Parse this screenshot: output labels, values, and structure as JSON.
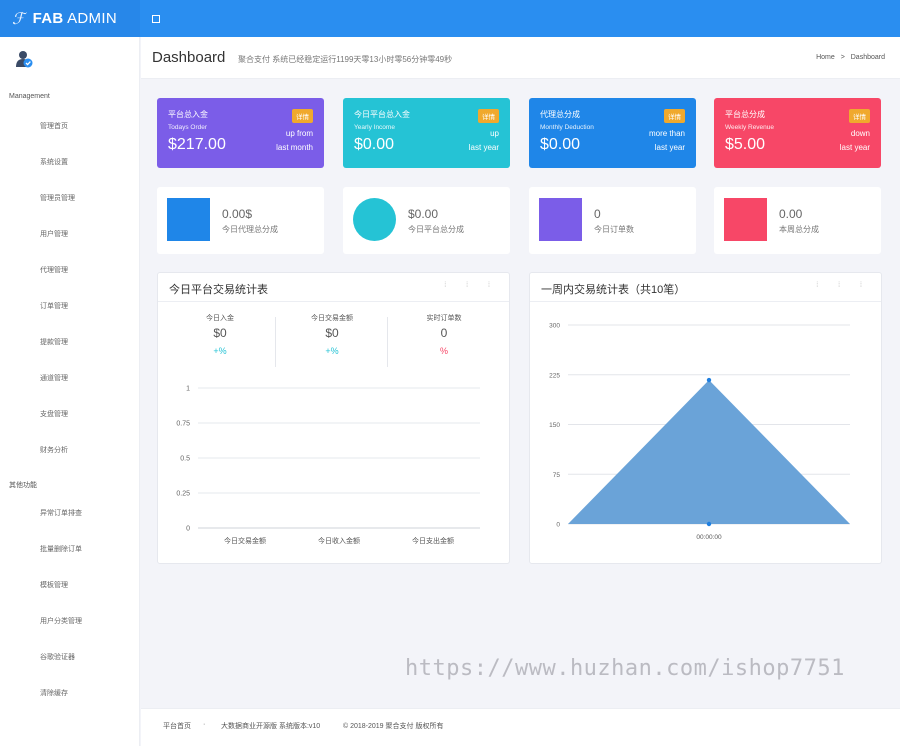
{
  "topbar": {
    "brand_icon": "ℱ",
    "brand_bold": "FAB",
    "brand_rest": " ADMIN"
  },
  "sidebar": {
    "section1": "Management",
    "items1": [
      "管理首页",
      "系统设置",
      "管理员管理",
      "用户管理",
      "代理管理",
      "订单管理",
      "提款管理",
      "通道管理",
      "支盘管理",
      "财务分析"
    ],
    "section2": "其他功能",
    "items2": [
      "异常订单排查",
      "批量删除订单",
      "模板管理",
      "用户分类管理",
      "谷歌验证器",
      "清除缓存"
    ]
  },
  "header": {
    "title": "Dashboard",
    "subtitle": "聚合支付 系统已经稳定运行1199天零13小时零56分钟零49秒",
    "breadcrumb": {
      "home": "Home",
      "sep": ">",
      "current": "Dashboard"
    }
  },
  "stats": [
    {
      "title": "平台总入金",
      "subtitle": "Todays Order",
      "value": "$217.00",
      "badge": "详情",
      "right1": "up from",
      "right2": "last month",
      "color": "#7b5de8"
    },
    {
      "title": "今日平台总入金",
      "subtitle": "Yearly Income",
      "value": "$0.00",
      "badge": "详情",
      "right1": "up",
      "right2": "last year",
      "color": "#25c3d5"
    },
    {
      "title": "代理总分成",
      "subtitle": "Monthly Deduction",
      "value": "$0.00",
      "badge": "详情",
      "right1": "more than",
      "right2": "last year",
      "color": "#1f86e8"
    },
    {
      "title": "平台总分成",
      "subtitle": "Weekly Revenue",
      "value": "$5.00",
      "badge": "详情",
      "right1": "down",
      "right2": "last year",
      "color": "#f74767"
    }
  ],
  "minis": [
    {
      "value": "0.00$",
      "label": "今日代理总分成",
      "color": "#1f86e8",
      "shape": "square"
    },
    {
      "value": "$0.00",
      "label": "今日平台总分成",
      "color": "#25c3d5",
      "shape": "circle"
    },
    {
      "value": "0",
      "label": "今日订单数",
      "color": "#7b5de8",
      "shape": "square"
    },
    {
      "value": "0.00",
      "label": "本周总分成",
      "color": "#f74767",
      "shape": "square"
    }
  ],
  "panel_left": {
    "title": "今日平台交易统计表",
    "tools": "⁞ ⁞ ⁞",
    "summary": [
      {
        "label": "今日入金",
        "value": "$0",
        "pct": "+%",
        "color": "#25c3d5"
      },
      {
        "label": "今日交易金额",
        "value": "$0",
        "pct": "+%",
        "color": "#25c3d5"
      },
      {
        "label": "实时订单数",
        "value": "0",
        "pct": "%",
        "color": "#f74767"
      }
    ]
  },
  "panel_right": {
    "title": "一周内交易统计表（共10笔）",
    "tools": "⁞ ⁞ ⁞"
  },
  "chart_data": [
    {
      "type": "bar",
      "categories": [
        "今日交易金额",
        "今日收入金额",
        "今日支出金额"
      ],
      "values": [
        0,
        0,
        0
      ],
      "yticks": [
        "0",
        "0.25",
        "0.5",
        "0.75",
        "1"
      ],
      "ylim": [
        0,
        1
      ]
    },
    {
      "type": "area",
      "x": [
        "",
        "00:00:00",
        ""
      ],
      "values": [
        0,
        217,
        0
      ],
      "yticks": [
        "0",
        "75",
        "150",
        "225",
        "300"
      ],
      "ylim": [
        0,
        300
      ],
      "color": "#6aa3d8"
    }
  ],
  "footer": {
    "home": "平台首页",
    "dot": "·",
    "version": "大数据商业开源版 系统版本:v10",
    "copyright": "© 2018-2019 聚合支付 版权所有"
  },
  "watermark": "https://www.huzhan.com/ishop7751"
}
